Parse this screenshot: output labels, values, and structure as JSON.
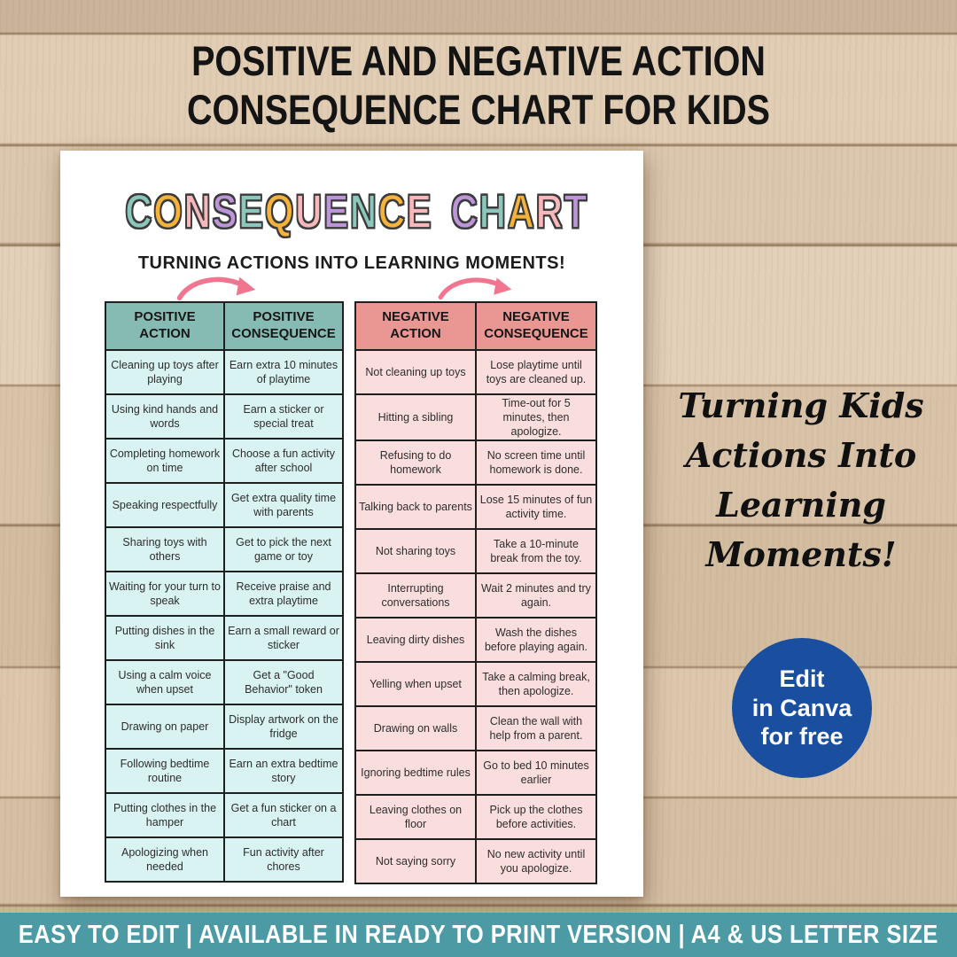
{
  "title": {
    "line1": "POSITIVE AND NEGATIVE ACTION",
    "line2": "CONSEQUENCE CHART FOR KIDS"
  },
  "poster": {
    "heading": {
      "text": "CONSEQUENCE CHART",
      "palette": [
        "#8cc7bc",
        "#f5b33b",
        "#f8b7ba",
        "#bd95d8"
      ]
    },
    "subtitle": "TURNING ACTIONS INTO LEARNING MOMENTS!",
    "positive_table": {
      "headers": [
        "POSITIVE ACTION",
        "POSITIVE CONSEQUENCE"
      ],
      "rows": [
        [
          "Cleaning up toys after playing",
          "Earn extra 10 minutes of playtime"
        ],
        [
          "Using kind hands and words",
          "Earn a sticker or special treat"
        ],
        [
          "Completing homework on time",
          "Choose a fun activity after school"
        ],
        [
          "Speaking respectfully",
          "Get extra quality time with parents"
        ],
        [
          "Sharing toys with others",
          "Get to pick the next game or toy"
        ],
        [
          "Waiting for your turn to speak",
          "Receive praise and extra playtime"
        ],
        [
          "Putting dishes in the sink",
          "Earn a small reward or sticker"
        ],
        [
          "Using a calm voice when upset",
          "Get a \"Good Behavior\" token"
        ],
        [
          "Drawing on paper",
          "Display artwork on the fridge"
        ],
        [
          "Following bedtime routine",
          "Earn an extra bedtime story"
        ],
        [
          "Putting clothes in the hamper",
          "Get a fun sticker on a chart"
        ],
        [
          "Apologizing when needed",
          "Fun activity after chores"
        ]
      ]
    },
    "negative_table": {
      "headers": [
        "NEGATIVE ACTION",
        "NEGATIVE CONSEQUENCE"
      ],
      "rows": [
        [
          "Not cleaning up toys",
          "Lose playtime until toys are cleaned up."
        ],
        [
          "Hitting a sibling",
          "Time-out for 5 minutes, then apologize."
        ],
        [
          "Refusing to do homework",
          "No screen time until homework is done."
        ],
        [
          "Talking back to parents",
          "Lose 15 minutes of fun activity time."
        ],
        [
          "Not sharing toys",
          "Take a 10-minute break from the toy."
        ],
        [
          "Interrupting conversations",
          "Wait 2 minutes and try again."
        ],
        [
          "Leaving dirty dishes",
          "Wash the dishes before playing again."
        ],
        [
          "Yelling when upset",
          "Take a calming break, then apologize."
        ],
        [
          "Drawing on walls",
          "Clean the wall with help from a parent."
        ],
        [
          "Ignoring bedtime rules",
          "Go to bed 10 minutes earlier"
        ],
        [
          "Leaving clothes on floor",
          "Pick up the clothes before  activities."
        ],
        [
          "Not saying sorry",
          "No new activity until you apologize."
        ]
      ]
    }
  },
  "side_text": {
    "lines": [
      "Turning Kids",
      "Actions Into",
      "Learning",
      "Moments!"
    ]
  },
  "badge": {
    "lines": [
      "Edit",
      "in Canva",
      "for free"
    ]
  },
  "footer": {
    "text": "EASY TO EDIT | AVAILABLE IN READY TO PRINT VERSION | A4 & US LETTER SIZE"
  },
  "colors": {
    "wood_base": "#d8c2a7",
    "title_text": "#141414",
    "paper": "#ffffff",
    "heading_outline": "#3b3b3b",
    "subtitle_text": "#1c1c1c",
    "arrow": "#f2758f",
    "pos_header": "#85bbb2",
    "pos_cell": "#d8f3f1",
    "neg_header": "#ea9793",
    "neg_cell": "#fadedd",
    "table_border": "#1f1f1f",
    "cell_text": "#2d2d2d",
    "script_text": "#101010",
    "badge_bg": "#1a4fa0",
    "badge_text": "#ffffff",
    "footer_bg": "#4b9aa4",
    "footer_text": "#ffffff"
  }
}
